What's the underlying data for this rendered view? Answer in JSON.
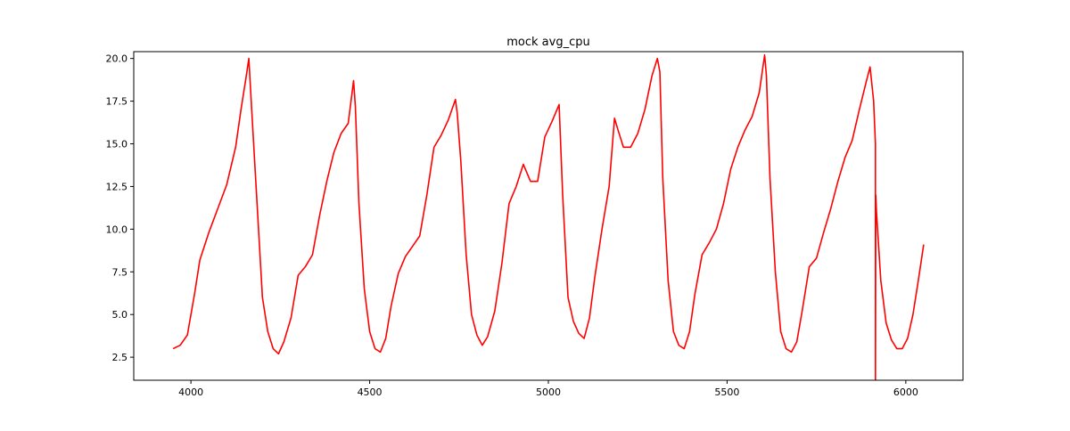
{
  "chart_data": {
    "type": "line",
    "title": "mock avg_cpu",
    "xlabel": "",
    "ylabel": "",
    "xlim": [
      3840,
      6160
    ],
    "ylim": [
      1.15,
      20.4
    ],
    "grid": false,
    "xticks": [
      4000,
      4500,
      5000,
      5500,
      6000
    ],
    "yticks": [
      2.5,
      5.0,
      7.5,
      10.0,
      12.5,
      15.0,
      17.5,
      20.0
    ],
    "xtick_labels": [
      "4000",
      "4500",
      "5000",
      "5500",
      "6000"
    ],
    "ytick_labels": [
      "2.5",
      "5.0",
      "7.5",
      "10.0",
      "12.5",
      "15.0",
      "17.5",
      "20.0"
    ],
    "series": [
      {
        "color": "#ff0000",
        "x": [
          3950,
          3970,
          3990,
          4000,
          4010,
          4025,
          4050,
          4075,
          4100,
          4125,
          4140,
          4155,
          4162,
          4170,
          4185,
          4200,
          4215,
          4230,
          4245,
          4260,
          4280,
          4300,
          4320,
          4340,
          4360,
          4380,
          4400,
          4420,
          4440,
          4455,
          4460,
          4470,
          4485,
          4500,
          4515,
          4530,
          4545,
          4560,
          4580,
          4600,
          4620,
          4640,
          4660,
          4680,
          4700,
          4720,
          4740,
          4745,
          4755,
          4770,
          4785,
          4800,
          4815,
          4830,
          4850,
          4870,
          4890,
          4910,
          4930,
          4950,
          4970,
          4990,
          5010,
          5030,
          5040,
          5055,
          5070,
          5085,
          5100,
          5115,
          5130,
          5150,
          5170,
          5185,
          5195,
          5210,
          5230,
          5250,
          5270,
          5290,
          5305,
          5312,
          5320,
          5335,
          5350,
          5365,
          5380,
          5395,
          5410,
          5430,
          5450,
          5470,
          5490,
          5510,
          5530,
          5550,
          5570,
          5590,
          5605,
          5610,
          5620,
          5635,
          5650,
          5665,
          5680,
          5695,
          5710,
          5730,
          5750,
          5770,
          5790,
          5810,
          5830,
          5850,
          5870,
          5890,
          5900,
          5910,
          5915,
          5915,
          5916,
          5918,
          5930,
          5945,
          5960,
          5975,
          5990,
          6005,
          6020,
          6035,
          6050
        ],
        "values": [
          3.0,
          3.2,
          3.8,
          5.0,
          6.2,
          8.2,
          9.8,
          11.2,
          12.6,
          14.8,
          17.0,
          19.0,
          20.0,
          17.0,
          11.5,
          6.0,
          4.0,
          3.0,
          2.7,
          3.4,
          4.8,
          7.3,
          7.8,
          8.5,
          10.8,
          12.8,
          14.5,
          15.6,
          16.2,
          18.7,
          17.2,
          11.5,
          6.5,
          4.0,
          3.0,
          2.8,
          3.6,
          5.5,
          7.4,
          8.4,
          9.0,
          9.6,
          12.0,
          14.8,
          15.5,
          16.4,
          17.6,
          16.8,
          14.0,
          8.5,
          5.0,
          3.8,
          3.2,
          3.7,
          5.2,
          8.0,
          11.5,
          12.5,
          13.8,
          12.8,
          12.8,
          15.4,
          16.3,
          17.3,
          12.0,
          6.0,
          4.6,
          3.9,
          3.6,
          4.8,
          7.2,
          10.0,
          12.5,
          16.5,
          15.8,
          14.8,
          14.8,
          15.6,
          17.0,
          19.0,
          20.0,
          19.2,
          13.0,
          7.0,
          4.0,
          3.2,
          3.0,
          4.0,
          6.2,
          8.5,
          9.2,
          10.0,
          11.5,
          13.5,
          14.8,
          15.8,
          16.6,
          18.0,
          20.2,
          19.0,
          13.0,
          7.5,
          4.0,
          3.0,
          2.8,
          3.4,
          5.2,
          7.8,
          8.3,
          9.8,
          11.2,
          12.8,
          14.2,
          15.2,
          17.0,
          18.7,
          19.5,
          17.5,
          15.0,
          0.5,
          12.0,
          11.0,
          7.0,
          4.5,
          3.5,
          3.0,
          3.0,
          3.6,
          5.0,
          7.0,
          9.1
        ]
      }
    ]
  }
}
